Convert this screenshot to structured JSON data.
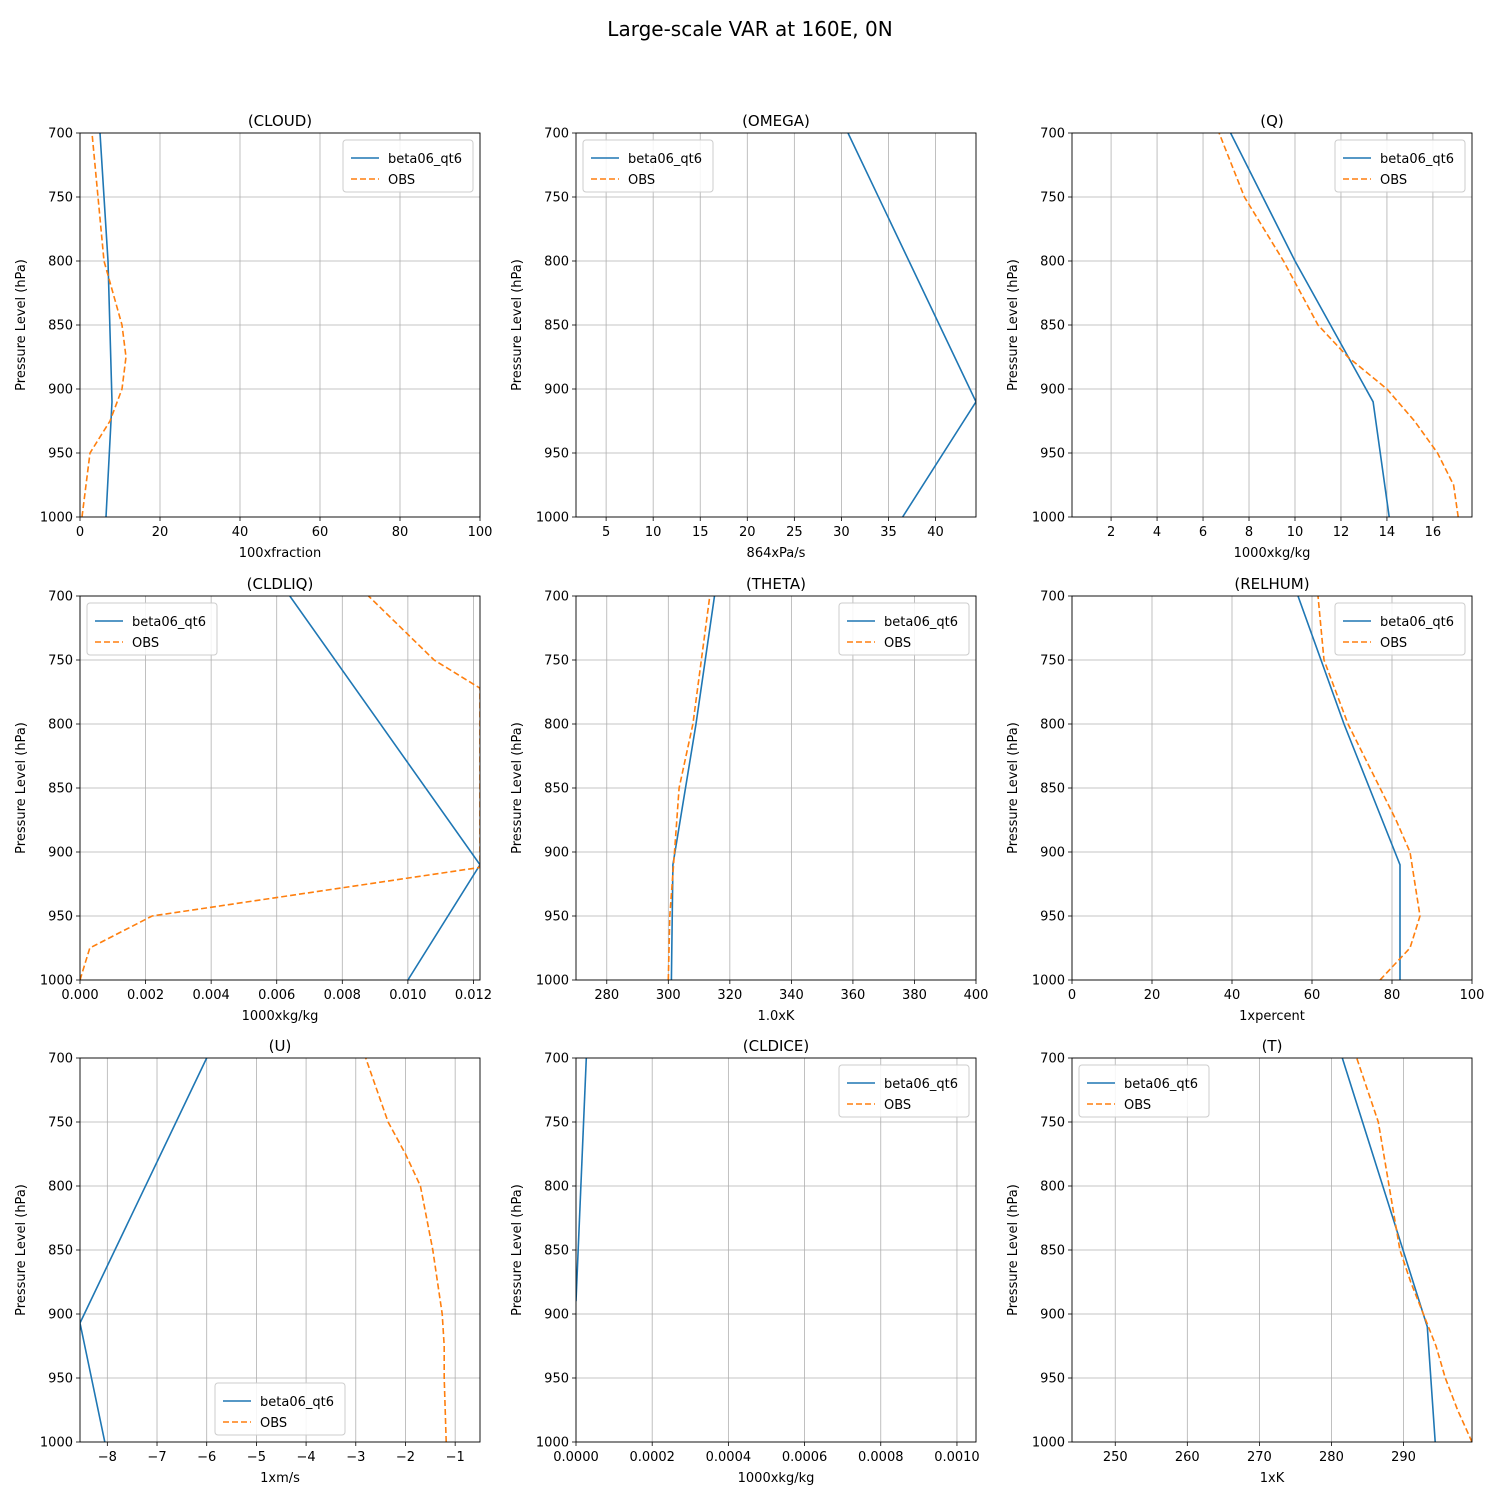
{
  "figure": {
    "title": "Large-scale VAR at 160E, 0N"
  },
  "colors": {
    "model": "#1f77b4",
    "obs": "#ff7f0e",
    "grid": "#b0b0b0"
  },
  "chart_data": [
    {
      "type": "line",
      "title": "(CLOUD)",
      "xlabel": "100xfraction",
      "ylabel": "Pressure Level (hPa)",
      "xlim": [
        0,
        100
      ],
      "ylim": [
        1000,
        700
      ],
      "grid": true,
      "legend": "top-right",
      "xticks": [
        "0",
        "20",
        "40",
        "60",
        "80",
        "100"
      ],
      "xtick_values": [
        0,
        20,
        40,
        60,
        80,
        100
      ],
      "yticks": [
        "700",
        "750",
        "800",
        "850",
        "900",
        "950",
        "1000"
      ],
      "ytick_values": [
        700,
        750,
        800,
        850,
        900,
        950,
        1000
      ],
      "series": [
        {
          "name": "beta06_qt6",
          "style": "solid",
          "x": [
            6.5,
            8.0,
            7.0,
            5.0
          ],
          "y": [
            1000,
            910,
            800,
            700
          ]
        },
        {
          "name": "OBS",
          "style": "dashed",
          "x": [
            0.5,
            2.5,
            7.5,
            10.5,
            11.5,
            10.5,
            6.0,
            4.5,
            3.0
          ],
          "y": [
            1000,
            950,
            925,
            900,
            875,
            850,
            800,
            750,
            700
          ]
        }
      ]
    },
    {
      "type": "line",
      "title": "(OMEGA)",
      "xlabel": "864xPa/s",
      "ylabel": "Pressure Level (hPa)",
      "xlim": [
        1.8,
        44.3
      ],
      "ylim": [
        1000,
        700
      ],
      "grid": true,
      "legend": "top-left",
      "xticks": [
        "5",
        "10",
        "15",
        "20",
        "25",
        "30",
        "35",
        "40"
      ],
      "xtick_values": [
        5,
        10,
        15,
        20,
        25,
        30,
        35,
        40
      ],
      "yticks": [
        "700",
        "750",
        "800",
        "850",
        "900",
        "950",
        "1000"
      ],
      "ytick_values": [
        700,
        750,
        800,
        850,
        900,
        950,
        1000
      ],
      "series": [
        {
          "name": "beta06_qt6",
          "style": "solid",
          "x": [
            36.5,
            44.3,
            30.7
          ],
          "y": [
            1000,
            910,
            700
          ]
        },
        {
          "name": "OBS",
          "style": "dashed",
          "x": [],
          "y": []
        }
      ]
    },
    {
      "type": "line",
      "title": "(Q)",
      "xlabel": "1000xkg/kg",
      "ylabel": "Pressure Level (hPa)",
      "xlim": [
        0.3,
        17.7
      ],
      "ylim": [
        1000,
        700
      ],
      "grid": true,
      "legend": "top-right",
      "xticks": [
        "2",
        "4",
        "6",
        "8",
        "10",
        "12",
        "14",
        "16"
      ],
      "xtick_values": [
        2,
        4,
        6,
        8,
        10,
        12,
        14,
        16
      ],
      "yticks": [
        "700",
        "750",
        "800",
        "850",
        "900",
        "950",
        "1000"
      ],
      "ytick_values": [
        700,
        750,
        800,
        850,
        900,
        950,
        1000
      ],
      "series": [
        {
          "name": "beta06_qt6",
          "style": "solid",
          "x": [
            14.1,
            13.4,
            10.0,
            7.2
          ],
          "y": [
            1000,
            910,
            800,
            700
          ]
        },
        {
          "name": "OBS",
          "style": "dashed",
          "x": [
            17.1,
            16.9,
            16.2,
            15.2,
            14.0,
            12.3,
            11.0,
            9.5,
            7.8,
            6.7
          ],
          "y": [
            1000,
            975,
            950,
            925,
            900,
            875,
            850,
            800,
            750,
            700
          ]
        }
      ]
    },
    {
      "type": "line",
      "title": "(CLDLIQ)",
      "xlabel": "1000xkg/kg",
      "ylabel": "Pressure Level (hPa)",
      "xlim": [
        0,
        0.0122
      ],
      "ylim": [
        1000,
        700
      ],
      "grid": true,
      "legend": "top-left",
      "xticks": [
        "0.000",
        "0.002",
        "0.004",
        "0.006",
        "0.008",
        "0.010",
        "0.012"
      ],
      "xtick_values": [
        0,
        0.002,
        0.004,
        0.006,
        0.008,
        0.01,
        0.012
      ],
      "yticks": [
        "700",
        "750",
        "800",
        "850",
        "900",
        "950",
        "1000"
      ],
      "ytick_values": [
        700,
        750,
        800,
        850,
        900,
        950,
        1000
      ],
      "series": [
        {
          "name": "beta06_qt6",
          "style": "solid",
          "x": [
            0.01,
            0.0122,
            0.0064
          ],
          "y": [
            1000,
            910,
            700
          ]
        },
        {
          "name": "OBS",
          "style": "dashed",
          "x": [
            0.0,
            0.0003,
            0.0022,
            0.0122,
            0.0122,
            0.0108,
            0.0088
          ],
          "y": [
            1000,
            975,
            950,
            912,
            772,
            750,
            700
          ]
        }
      ]
    },
    {
      "type": "line",
      "title": "(THETA)",
      "xlabel": "1.0xK",
      "ylabel": "Pressure Level (hPa)",
      "xlim": [
        270,
        400
      ],
      "ylim": [
        1000,
        700
      ],
      "grid": true,
      "legend": "top-right",
      "xticks": [
        "280",
        "300",
        "320",
        "340",
        "360",
        "380",
        "400"
      ],
      "xtick_values": [
        280,
        300,
        320,
        340,
        360,
        380,
        400
      ],
      "yticks": [
        "700",
        "750",
        "800",
        "850",
        "900",
        "950",
        "1000"
      ],
      "ytick_values": [
        700,
        750,
        800,
        850,
        900,
        950,
        1000
      ],
      "series": [
        {
          "name": "beta06_qt6",
          "style": "solid",
          "x": [
            301.0,
            301.5,
            309.0,
            315.0
          ],
          "y": [
            1000,
            910,
            800,
            700
          ]
        },
        {
          "name": "OBS",
          "style": "dashed",
          "x": [
            300.0,
            300.5,
            302.0,
            303.5,
            308.0,
            313.5
          ],
          "y": [
            1000,
            950,
            900,
            850,
            800,
            700
          ]
        }
      ]
    },
    {
      "type": "line",
      "title": "(RELHUM)",
      "xlabel": "1xpercent",
      "ylabel": "Pressure Level (hPa)",
      "xlim": [
        0,
        100
      ],
      "ylim": [
        1000,
        700
      ],
      "grid": true,
      "legend": "top-right",
      "xticks": [
        "0",
        "20",
        "40",
        "60",
        "80",
        "100"
      ],
      "xtick_values": [
        0,
        20,
        40,
        60,
        80,
        100
      ],
      "yticks": [
        "700",
        "750",
        "800",
        "850",
        "900",
        "950",
        "1000"
      ],
      "ytick_values": [
        700,
        750,
        800,
        850,
        900,
        950,
        1000
      ],
      "series": [
        {
          "name": "beta06_qt6",
          "style": "solid",
          "x": [
            82.0,
            82.0,
            82.0,
            68.0,
            56.5
          ],
          "y": [
            1000,
            950,
            910,
            800,
            700
          ]
        },
        {
          "name": "OBS",
          "style": "dashed",
          "x": [
            77.0,
            84.5,
            87.0,
            84.5,
            81.0,
            77.0,
            69.0,
            63.0,
            61.5
          ],
          "y": [
            1000,
            975,
            950,
            900,
            875,
            850,
            800,
            750,
            700
          ]
        }
      ]
    },
    {
      "type": "line",
      "title": "(U)",
      "xlabel": "1xm/s",
      "ylabel": "Pressure Level (hPa)",
      "xlim": [
        -8.55,
        -0.5
      ],
      "ylim": [
        1000,
        700
      ],
      "grid": true,
      "legend": "bottom-center",
      "xticks": [
        "−8",
        "−7",
        "−6",
        "−5",
        "−4",
        "−3",
        "−2",
        "−1"
      ],
      "xtick_values": [
        -8,
        -7,
        -6,
        -5,
        -4,
        -3,
        -2,
        -1
      ],
      "yticks": [
        "700",
        "750",
        "800",
        "850",
        "900",
        "950",
        "1000"
      ],
      "ytick_values": [
        700,
        750,
        800,
        850,
        900,
        950,
        1000
      ],
      "series": [
        {
          "name": "beta06_qt6",
          "style": "solid",
          "x": [
            -8.05,
            -8.55,
            -6.0
          ],
          "y": [
            1000,
            907,
            700
          ]
        },
        {
          "name": "OBS",
          "style": "dashed",
          "x": [
            -1.18,
            -1.22,
            -1.22,
            -1.26,
            -1.45,
            -1.7,
            -2.0,
            -2.35,
            -2.8
          ],
          "y": [
            1000,
            950,
            925,
            900,
            850,
            800,
            775,
            750,
            700
          ]
        }
      ]
    },
    {
      "type": "line",
      "title": "(CLDICE)",
      "xlabel": "1000xkg/kg",
      "ylabel": "Pressure Level (hPa)",
      "xlim": [
        0,
        0.00105
      ],
      "ylim": [
        1000,
        700
      ],
      "grid": true,
      "legend": "top-right",
      "xticks": [
        "0.0000",
        "0.0002",
        "0.0004",
        "0.0006",
        "0.0008",
        "0.0010"
      ],
      "xtick_values": [
        0,
        0.0002,
        0.0004,
        0.0006,
        0.0008,
        0.001
      ],
      "yticks": [
        "700",
        "750",
        "800",
        "850",
        "900",
        "950",
        "1000"
      ],
      "ytick_values": [
        700,
        750,
        800,
        850,
        900,
        950,
        1000
      ],
      "series": [
        {
          "name": "beta06_qt6",
          "style": "solid",
          "x": [
            0.0,
            2.7e-05
          ],
          "y": [
            890,
            700
          ]
        },
        {
          "name": "OBS",
          "style": "dashed",
          "x": [],
          "y": []
        }
      ]
    },
    {
      "type": "line",
      "title": "(T)",
      "xlabel": "1xK",
      "ylabel": "Pressure Level (hPa)",
      "xlim": [
        244,
        299.5
      ],
      "ylim": [
        1000,
        700
      ],
      "grid": true,
      "legend": "top-left",
      "xticks": [
        "250",
        "260",
        "270",
        "280",
        "290"
      ],
      "xtick_values": [
        250,
        260,
        270,
        280,
        290
      ],
      "yticks": [
        "700",
        "750",
        "800",
        "850",
        "900",
        "950",
        "1000"
      ],
      "ytick_values": [
        700,
        750,
        800,
        850,
        900,
        950,
        1000
      ],
      "series": [
        {
          "name": "beta06_qt6",
          "style": "solid",
          "x": [
            294.4,
            293.3,
            281.5
          ],
          "y": [
            1000,
            910,
            700
          ]
        },
        {
          "name": "OBS",
          "style": "dashed",
          "x": [
            299.5,
            297.5,
            295.8,
            294.5,
            291.0,
            289.5,
            286.5,
            283.5
          ],
          "y": [
            1000,
            975,
            950,
            925,
            875,
            850,
            750,
            700
          ]
        }
      ]
    }
  ]
}
